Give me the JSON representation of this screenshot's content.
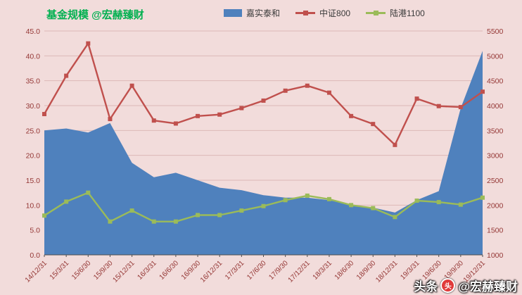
{
  "header": {
    "title": "基金规模 @宏赫臻财"
  },
  "watermark": {
    "prefix": "头条",
    "logo_glyph": "头",
    "handle": "@宏赫臻财"
  },
  "colors": {
    "background": "#f2dcdb",
    "gridline": "#dcb9b7",
    "axis_label": "#943634",
    "axis_line": "#4d4d4d",
    "area_blue": "#4f81bd",
    "line_red": "#c0504d",
    "line_green": "#9bbb59",
    "title_green": "#00b050"
  },
  "chart_data": {
    "type": "area",
    "title": "基金规模 @宏赫臻财",
    "x": [
      "14/12/31",
      "15/3/31",
      "15/6/30",
      "15/9/30",
      "15/12/31",
      "16/3/31",
      "16/6/30",
      "16/9/30",
      "16/12/31",
      "17/3/31",
      "17/6/30",
      "17/9/30",
      "17/12/31",
      "18/3/31",
      "18/6/30",
      "18/9/30",
      "18/12/31",
      "19/3/31",
      "19/6/30",
      "19/9/30",
      "19/12/31"
    ],
    "series": [
      {
        "name": "嘉实泰和",
        "type": "area",
        "axis": "left",
        "color": "#4f81bd",
        "values": [
          25.0,
          25.4,
          24.6,
          26.5,
          18.5,
          15.6,
          16.5,
          15.0,
          13.5,
          13.0,
          12.0,
          11.5,
          11.5,
          11.0,
          10.0,
          9.5,
          8.5,
          11.0,
          12.8,
          29.5,
          41.0
        ]
      },
      {
        "name": "中证800",
        "type": "line",
        "axis": "right",
        "color": "#c0504d",
        "values": [
          3830,
          4600,
          5250,
          3730,
          4400,
          3700,
          3640,
          3790,
          3820,
          3950,
          4100,
          4300,
          4400,
          4260,
          3790,
          3630,
          3210,
          4140,
          3990,
          3970,
          4280
        ]
      },
      {
        "name": "陆港1100",
        "type": "line",
        "axis": "right",
        "color": "#9bbb59",
        "values": [
          1790,
          2070,
          2250,
          1670,
          1890,
          1670,
          1670,
          1800,
          1800,
          1890,
          1980,
          2100,
          2190,
          2120,
          2000,
          1940,
          1760,
          2090,
          2060,
          2010,
          2150
        ]
      }
    ],
    "left_axis": {
      "min": 0,
      "max": 45,
      "tick_labels": [
        "0.0",
        "5.0",
        "10.0",
        "15.0",
        "20.0",
        "25.0",
        "30.0",
        "35.0",
        "40.0",
        "45.0"
      ],
      "tick_values": [
        0,
        5,
        10,
        15,
        20,
        25,
        30,
        35,
        40,
        45
      ]
    },
    "right_axis": {
      "min": 1000,
      "max": 5500,
      "tick_labels": [
        "1000",
        "1500",
        "2000",
        "2500",
        "3000",
        "3500",
        "4000",
        "4500",
        "5000",
        "5500"
      ],
      "tick_values": [
        1000,
        1500,
        2000,
        2500,
        3000,
        3500,
        4000,
        4500,
        5000,
        5500
      ]
    },
    "grid": true,
    "legend_position": "top"
  }
}
